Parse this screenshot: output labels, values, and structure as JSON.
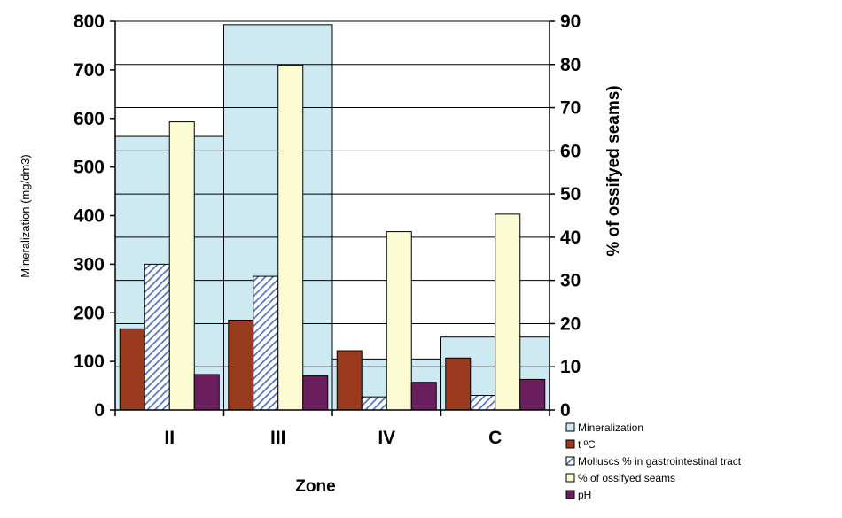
{
  "chart_data": {
    "type": "bar",
    "categories": [
      "II",
      "III",
      "IV",
      "C"
    ],
    "xlabel": "Zone",
    "ylabel_left": "Mineralization (mg/dm3)",
    "ylabel_right": "% of ossifyed seams)",
    "ylim_left": [
      0,
      800
    ],
    "ylim_right": [
      0,
      90
    ],
    "yticks_left": [
      0,
      100,
      200,
      300,
      400,
      500,
      600,
      700,
      800
    ],
    "yticks_right": [
      0,
      10,
      20,
      30,
      40,
      50,
      60,
      70,
      80,
      90
    ],
    "background_series": {
      "name": "Mineralization",
      "axis": "left",
      "values": [
        563,
        793,
        105,
        150
      ],
      "color": "#cde9f2"
    },
    "series": [
      {
        "name": "t ºC",
        "axis": "left",
        "values": [
          167,
          185,
          122,
          107
        ],
        "color": "#9a3a1e"
      },
      {
        "name": "Molluscs % in gastrointestinal tract",
        "axis": "left",
        "values": [
          300,
          275,
          27,
          30
        ],
        "color": "#6e86c8",
        "pattern": "hatch"
      },
      {
        "name": "% of ossifyed seams",
        "axis": "left",
        "values": [
          593,
          710,
          367,
          403
        ],
        "color": "#fbfbd4"
      },
      {
        "name": "pH",
        "axis": "left",
        "values": [
          73,
          70,
          57,
          63
        ],
        "color": "#6b1e5e"
      }
    ],
    "grid": true,
    "legend_position": "bottom-right",
    "legend_labels": [
      "Mineralization",
      "t ºC",
      "Molluscs % in gastrointestinal tract",
      "% of ossifyed seams",
      "pH"
    ]
  }
}
